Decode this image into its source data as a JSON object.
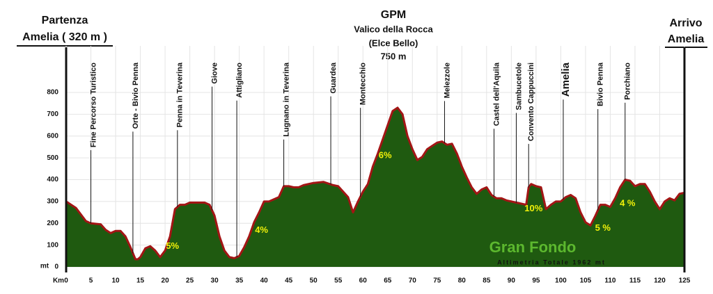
{
  "chart_data": {
    "type": "area",
    "x_label": "Km",
    "y_label": "mt",
    "start": {
      "label": "Partenza",
      "place": "Amelia ( 320 m )"
    },
    "summit": {
      "label": "GPM",
      "name": "Valico della Rocca",
      "alt_name": "(Elce Bello)",
      "altitude": "750 m"
    },
    "finish": {
      "label": "Arrivo",
      "place": "Amelia"
    },
    "event": "Gran Fondo",
    "note": "Altimetria Totale 1962 mt",
    "x": [
      0,
      2,
      4,
      5,
      7,
      8,
      9,
      10,
      11,
      12,
      13,
      14,
      14.5,
      15,
      16,
      17,
      18,
      19,
      20,
      21,
      22,
      23,
      24,
      25,
      27,
      28,
      29,
      30,
      31,
      32,
      33,
      34,
      35,
      36,
      37,
      38,
      39,
      40,
      41,
      42,
      43,
      44,
      45,
      46,
      47,
      48,
      50,
      52,
      54,
      55,
      56,
      57,
      58,
      59,
      60,
      61,
      62,
      63,
      64,
      65,
      66,
      67,
      68,
      69,
      70,
      71,
      72,
      73,
      74,
      75,
      76,
      77,
      78,
      79,
      80,
      81,
      82,
      83,
      84,
      85,
      86,
      87,
      88,
      89,
      90,
      91,
      92,
      93,
      93.5,
      94,
      95,
      96,
      97,
      98,
      99,
      100,
      101,
      102,
      103,
      104,
      105,
      106,
      107,
      108,
      109,
      110,
      111,
      112,
      113,
      114,
      115,
      116,
      117,
      118,
      119,
      120,
      121,
      122,
      123,
      124,
      125
    ],
    "values": [
      300,
      270,
      210,
      200,
      195,
      170,
      155,
      165,
      165,
      140,
      90,
      35,
      35,
      45,
      85,
      95,
      75,
      45,
      75,
      140,
      265,
      285,
      285,
      295,
      295,
      295,
      285,
      235,
      140,
      75,
      45,
      40,
      50,
      90,
      140,
      205,
      250,
      300,
      300,
      310,
      320,
      370,
      370,
      365,
      365,
      375,
      385,
      390,
      375,
      370,
      345,
      320,
      250,
      300,
      345,
      380,
      460,
      520,
      585,
      650,
      715,
      730,
      700,
      600,
      540,
      490,
      505,
      540,
      555,
      570,
      575,
      560,
      565,
      520,
      460,
      410,
      365,
      335,
      355,
      365,
      330,
      315,
      315,
      305,
      300,
      295,
      290,
      285,
      365,
      380,
      370,
      365,
      265,
      285,
      300,
      300,
      320,
      330,
      315,
      250,
      205,
      190,
      235,
      285,
      285,
      275,
      315,
      365,
      400,
      395,
      370,
      380,
      380,
      345,
      300,
      265,
      300,
      315,
      305,
      335,
      340
    ],
    "fill_color": "#1f5a10",
    "line_color": "#a31515",
    "xlim": [
      0,
      125
    ],
    "ylim": [
      0,
      950
    ],
    "xticks": [
      0,
      5,
      10,
      15,
      20,
      25,
      30,
      35,
      40,
      45,
      50,
      55,
      60,
      65,
      70,
      75,
      80,
      85,
      90,
      95,
      100,
      105,
      110,
      115,
      120,
      125
    ],
    "yticks": [
      0,
      100,
      200,
      300,
      400,
      500,
      600,
      700,
      800
    ],
    "grid": true,
    "places": [
      {
        "text": "Fine Percorso Turistico",
        "x": 5
      },
      {
        "text": "Orte - Bivio Penna",
        "x": 13.5
      },
      {
        "text": "Penna in Teverina",
        "x": 22.5
      },
      {
        "text": "Giove",
        "x": 29.5
      },
      {
        "text": "Attigliano",
        "x": 34.5
      },
      {
        "text": "Lugnano in Teverina",
        "x": 44
      },
      {
        "text": "Guardea",
        "x": 53.5
      },
      {
        "text": "Montecchio",
        "x": 59.5
      },
      {
        "text": "Melezzole",
        "x": 76.5
      },
      {
        "text": "Castel dell'Aquila",
        "x": 86.5
      },
      {
        "text": "Sambucetole",
        "x": 91
      },
      {
        "text": "Convento Cappuccini",
        "x": 93.5
      },
      {
        "text": "Amelia",
        "x": 100.5,
        "highlight": true
      },
      {
        "text": "Bivio Penna",
        "x": 107.5
      },
      {
        "text": "Porchiano",
        "x": 113
      }
    ],
    "gradients": [
      {
        "text": "5%",
        "x": 21.5
      },
      {
        "text": "4%",
        "x": 39.5
      },
      {
        "text": "6%",
        "x": 64.5
      },
      {
        "text": "10%",
        "x": 94.5
      },
      {
        "text": "5 %",
        "x": 108.5
      },
      {
        "text": "4 %",
        "x": 113.5
      }
    ]
  }
}
